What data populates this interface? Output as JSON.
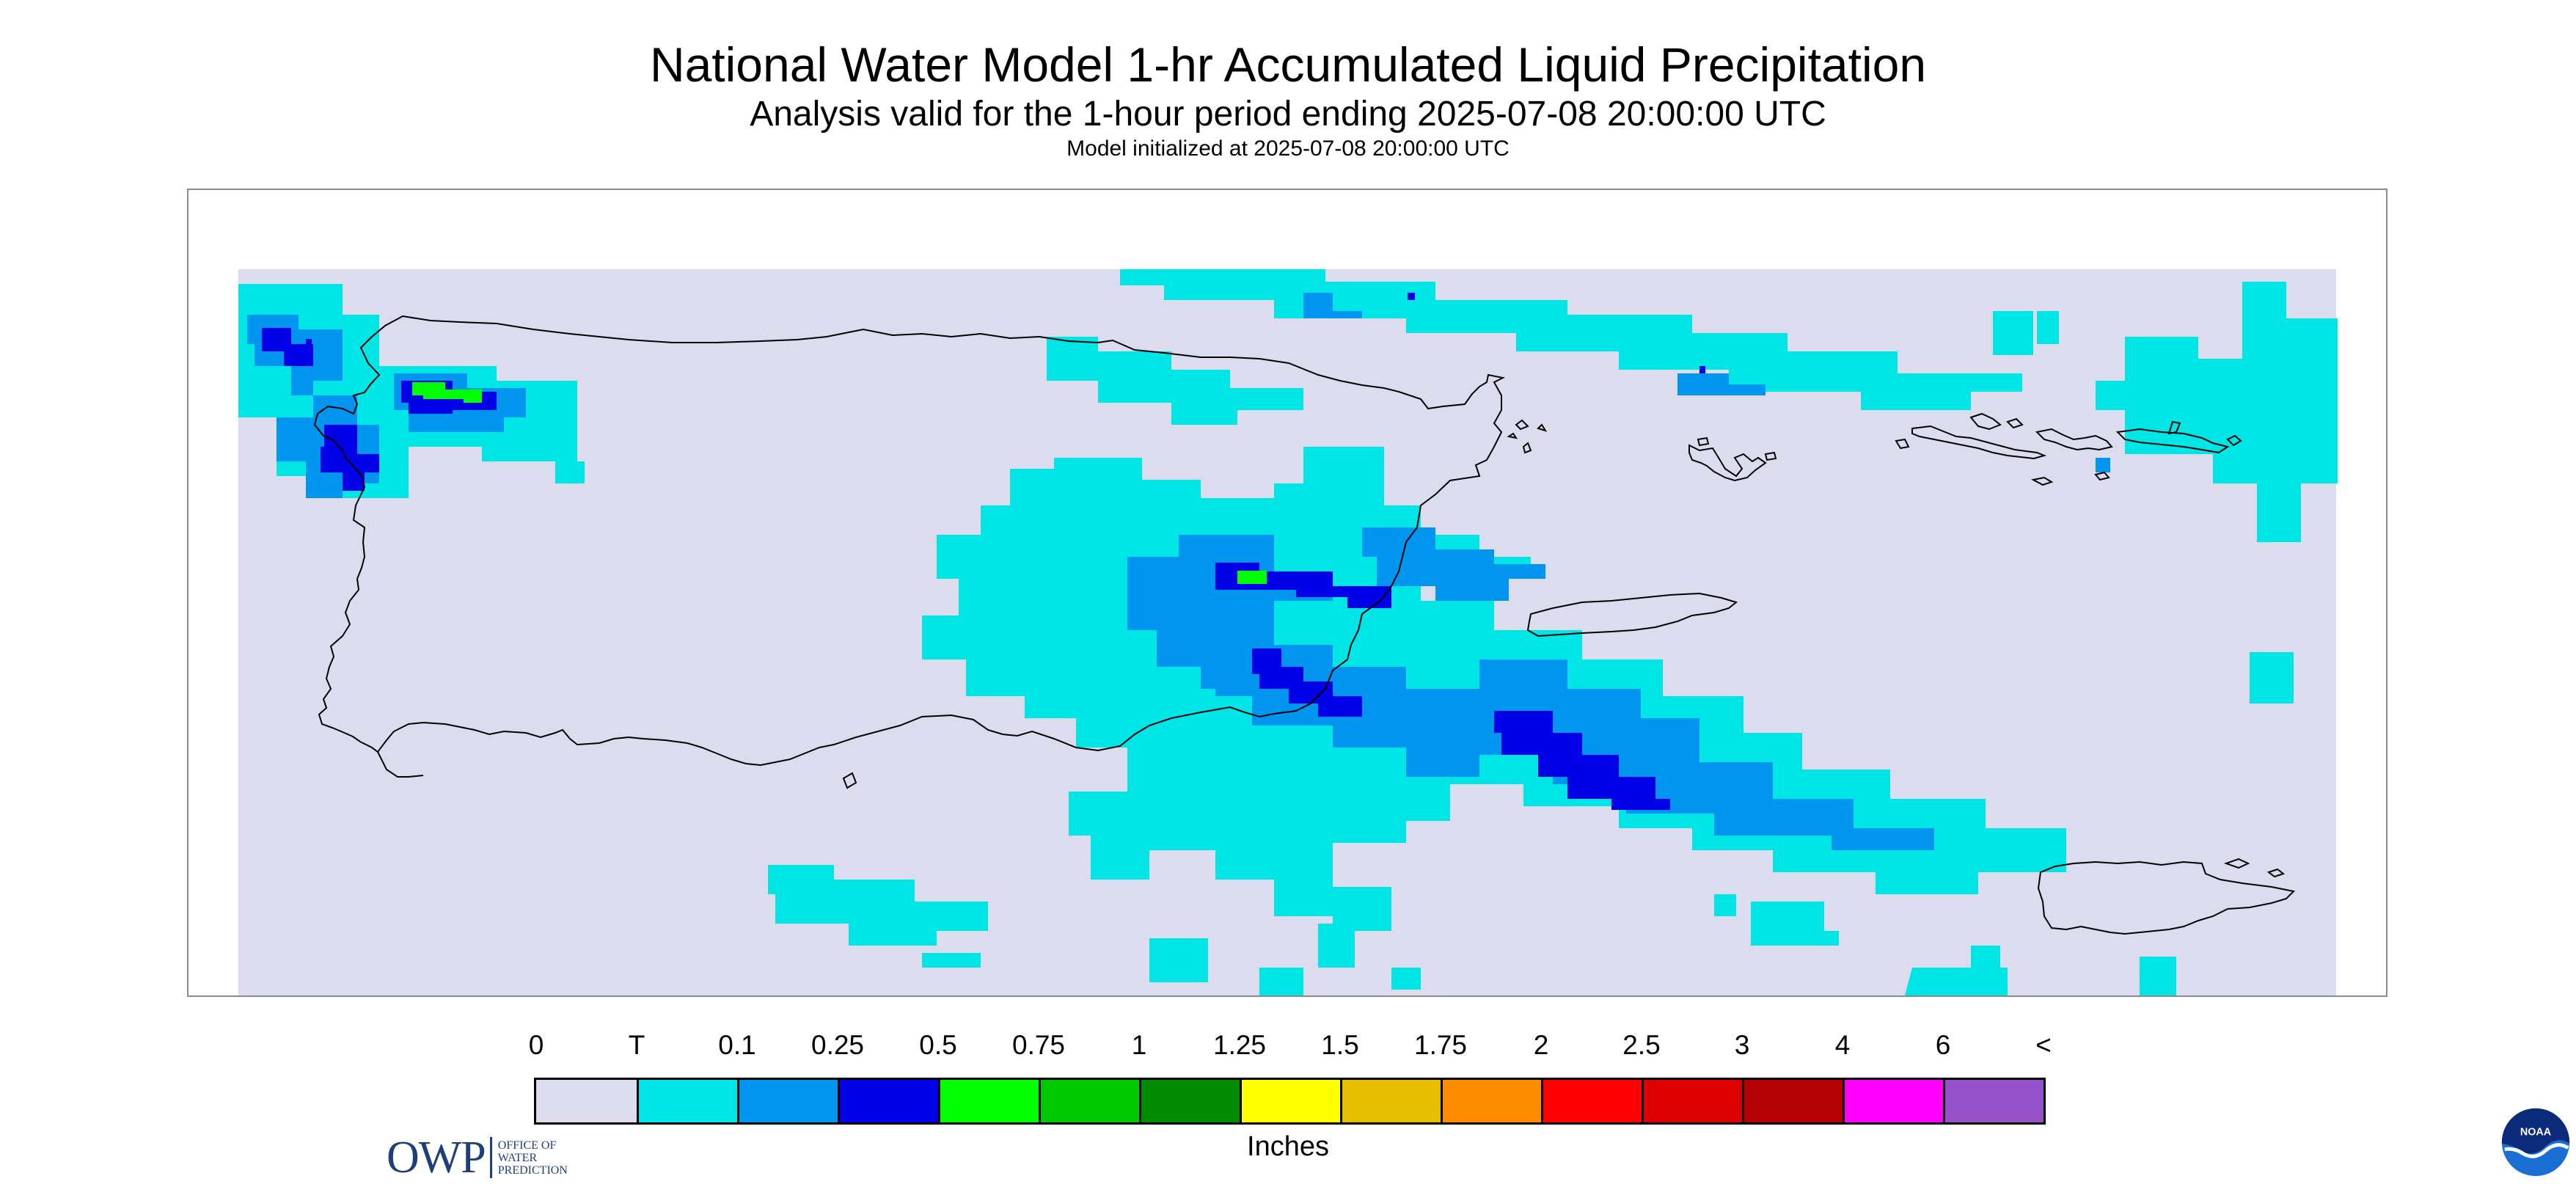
{
  "title": "National Water Model 1-hr Accumulated Liquid Precipitation",
  "subtitle": "Analysis valid for the 1-hour period ending 2025-07-08 20:00:00 UTC",
  "init_text": "Model initialized at 2025-07-08 20:00:00 UTC",
  "logo_owp": {
    "abbr": "OWP",
    "line1": "OFFICE OF",
    "line2": "WATER",
    "line3": "PREDICTION"
  },
  "logo_noaa": {
    "text": "NOAA"
  },
  "legend": {
    "labels": [
      "0",
      "T",
      "0.1",
      "0.25",
      "0.5",
      "0.75",
      "1",
      "1.25",
      "1.5",
      "1.75",
      "2",
      "2.5",
      "3",
      "4",
      "6",
      "<"
    ],
    "colors": [
      "#dcdcee",
      "#00e5e5",
      "#0096f0",
      "#0000e8",
      "#00ff00",
      "#00c800",
      "#008c00",
      "#ffff00",
      "#e6be00",
      "#ff8c00",
      "#ff0000",
      "#dc0000",
      "#b40000",
      "#ff00ff",
      "#9650c8"
    ],
    "units": "Inches"
  },
  "colors": {
    "background": "#dcdcee",
    "trace": "#00e5e5",
    "light": "#0096f0",
    "medium": "#0000e8",
    "heavy": "#00ff00",
    "coastline": "#000000"
  }
}
